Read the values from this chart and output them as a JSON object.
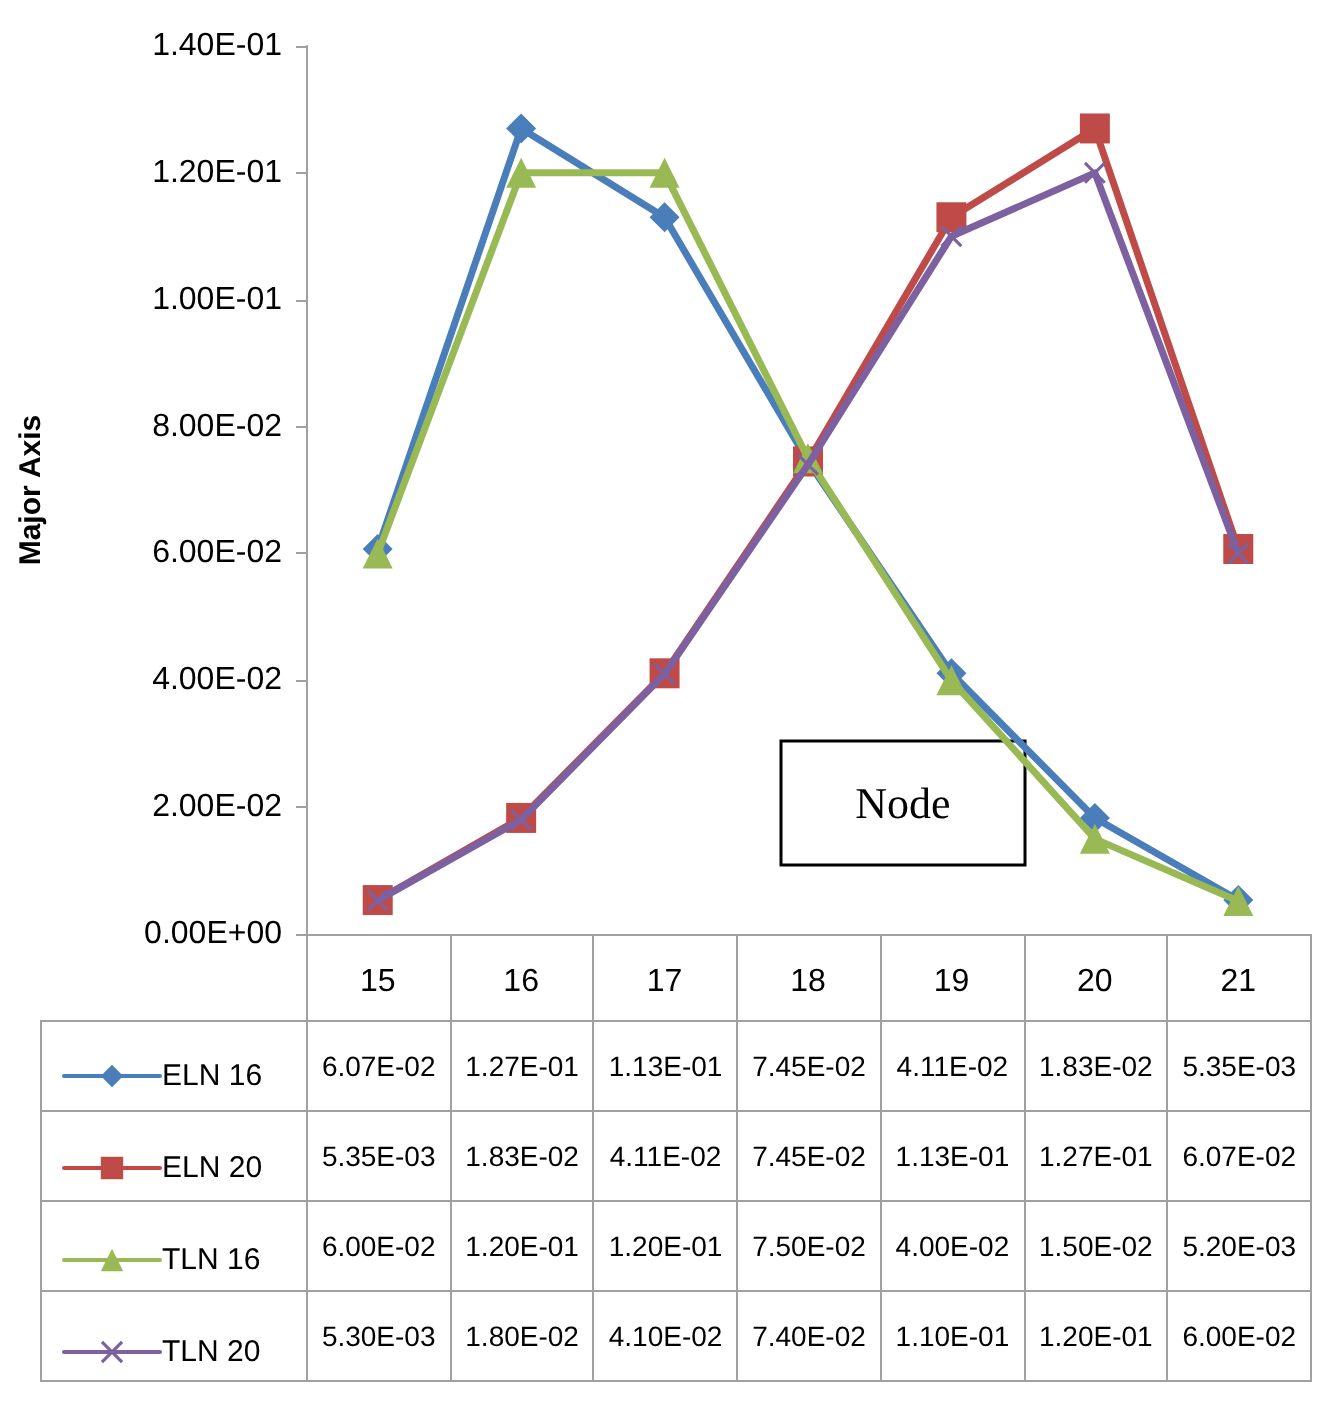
{
  "chart_data": {
    "type": "line",
    "xlabel": "Node",
    "ylabel": "Major Axis",
    "categories": [
      "15",
      "16",
      "17",
      "18",
      "19",
      "20",
      "21"
    ],
    "ylim": [
      0,
      0.14
    ],
    "yticks": [
      {
        "value": 0,
        "label": "0.00E+00"
      },
      {
        "value": 0.02,
        "label": "2.00E-02"
      },
      {
        "value": 0.04,
        "label": "4.00E-02"
      },
      {
        "value": 0.06,
        "label": "6.00E-02"
      },
      {
        "value": 0.08,
        "label": "8.00E-02"
      },
      {
        "value": 0.1,
        "label": "1.00E-01"
      },
      {
        "value": 0.12,
        "label": "1.20E-01"
      },
      {
        "value": 0.14,
        "label": "1.40E-01"
      }
    ],
    "legend": "bottom left",
    "series": [
      {
        "name": "ELN 16",
        "color": "#4a7ebb",
        "marker": "diamond",
        "values": [
          0.0607,
          0.127,
          0.113,
          0.0745,
          0.0411,
          0.0183,
          0.00535
        ],
        "value_labels": [
          "6.07E-02",
          "1.27E-01",
          "1.13E-01",
          "7.45E-02",
          "4.11E-02",
          "1.83E-02",
          "5.35E-03"
        ]
      },
      {
        "name": "ELN 20",
        "color": "#be4b48",
        "marker": "square",
        "values": [
          0.00535,
          0.0183,
          0.0411,
          0.0745,
          0.113,
          0.127,
          0.0607
        ],
        "value_labels": [
          "5.35E-03",
          "1.83E-02",
          "4.11E-02",
          "7.45E-02",
          "1.13E-01",
          "1.27E-01",
          "6.07E-02"
        ]
      },
      {
        "name": "TLN 16",
        "color": "#98b954",
        "marker": "triangle",
        "values": [
          0.06,
          0.12,
          0.12,
          0.075,
          0.04,
          0.015,
          0.0052
        ],
        "value_labels": [
          "6.00E-02",
          "1.20E-01",
          "1.20E-01",
          "7.50E-02",
          "4.00E-02",
          "1.50E-02",
          "5.20E-03"
        ]
      },
      {
        "name": "TLN 20",
        "color": "#7d60a0",
        "marker": "cross",
        "values": [
          0.0053,
          0.018,
          0.041,
          0.074,
          0.11,
          0.12,
          0.06
        ],
        "value_labels": [
          "5.30E-03",
          "1.80E-02",
          "4.10E-02",
          "7.40E-02",
          "1.10E-01",
          "1.20E-01",
          "6.00E-02"
        ]
      }
    ]
  }
}
